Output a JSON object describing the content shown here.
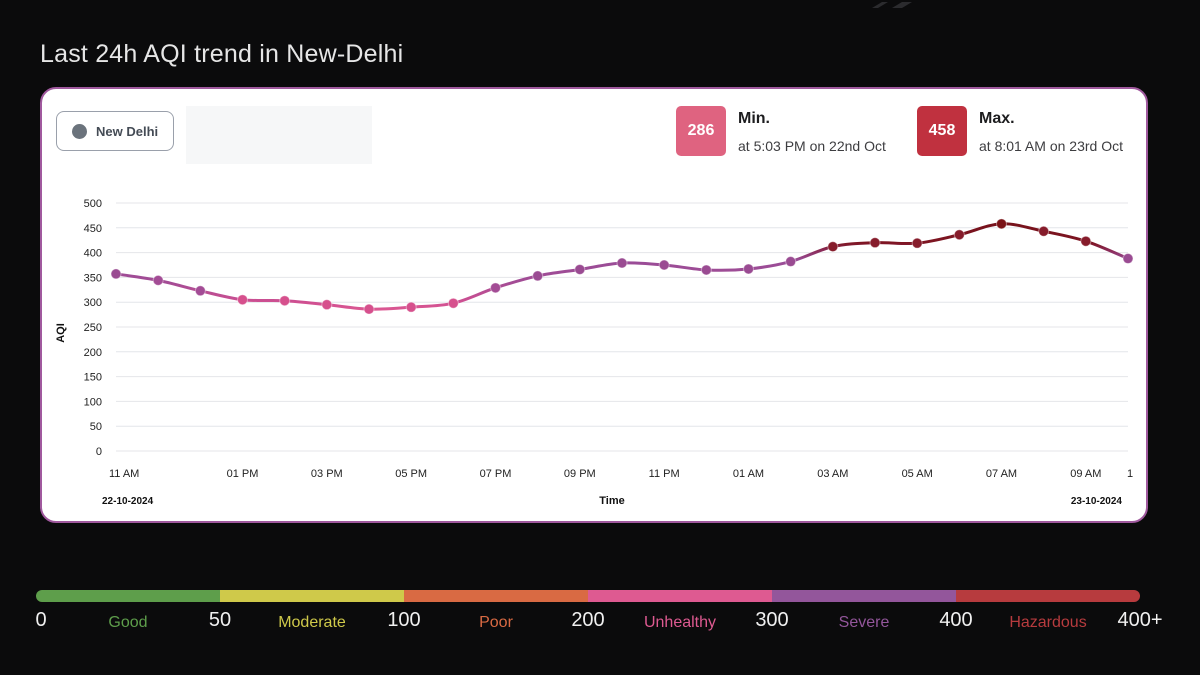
{
  "page": {
    "title": "Last 24h AQI trend in New-Delhi"
  },
  "legend": {
    "label": "New Delhi",
    "dot_color": "#6b737c"
  },
  "stats": {
    "min": {
      "value": "286",
      "label": "Min.",
      "detail": "at 5:03 PM on 22nd Oct",
      "color": "#df6380"
    },
    "max": {
      "value": "458",
      "label": "Max.",
      "detail": "at 8:01 AM on 23rd Oct",
      "color": "#c0313f"
    }
  },
  "chart_data": {
    "type": "line",
    "title": "",
    "xlabel": "Time",
    "ylabel": "AQI",
    "ylim": [
      0,
      500
    ],
    "yticks": [
      0,
      50,
      100,
      150,
      200,
      250,
      300,
      350,
      400,
      450,
      500
    ],
    "xtick_labels": [
      "11 AM",
      "01 PM",
      "03 PM",
      "05 PM",
      "07 PM",
      "09 PM",
      "11 PM",
      "01 AM",
      "03 AM",
      "05 AM",
      "07 AM",
      "09 AM",
      "1"
    ],
    "start_date_label": "22-10-2024",
    "end_date_label": "23-10-2024",
    "grid": true,
    "series": [
      {
        "name": "New Delhi",
        "x": [
          "10:00",
          "11:00",
          "12:00",
          "13:00",
          "14:00",
          "15:00",
          "16:00",
          "17:00",
          "18:00",
          "19:00",
          "20:00",
          "21:00",
          "22:00",
          "23:00",
          "00:00",
          "01:00",
          "02:00",
          "03:00",
          "04:00",
          "05:00",
          "06:00",
          "07:00",
          "08:00",
          "09:00",
          "10:00"
        ],
        "values": [
          357,
          344,
          323,
          305,
          303,
          295,
          286,
          290,
          298,
          329,
          353,
          366,
          379,
          375,
          365,
          367,
          382,
          412,
          420,
          419,
          436,
          458,
          443,
          423,
          388
        ]
      }
    ]
  },
  "aqi_scale": {
    "numbers": [
      "0",
      "50",
      "100",
      "200",
      "300",
      "400",
      "400+"
    ],
    "categories": [
      {
        "name": "Good",
        "color": "#5e9e4b"
      },
      {
        "name": "Moderate",
        "color": "#cfc94a"
      },
      {
        "name": "Poor",
        "color": "#d96a43"
      },
      {
        "name": "Unhealthy",
        "color": "#de5a91"
      },
      {
        "name": "Severe",
        "color": "#93569b"
      },
      {
        "name": "Hazardous",
        "color": "#b73b3e"
      }
    ]
  }
}
